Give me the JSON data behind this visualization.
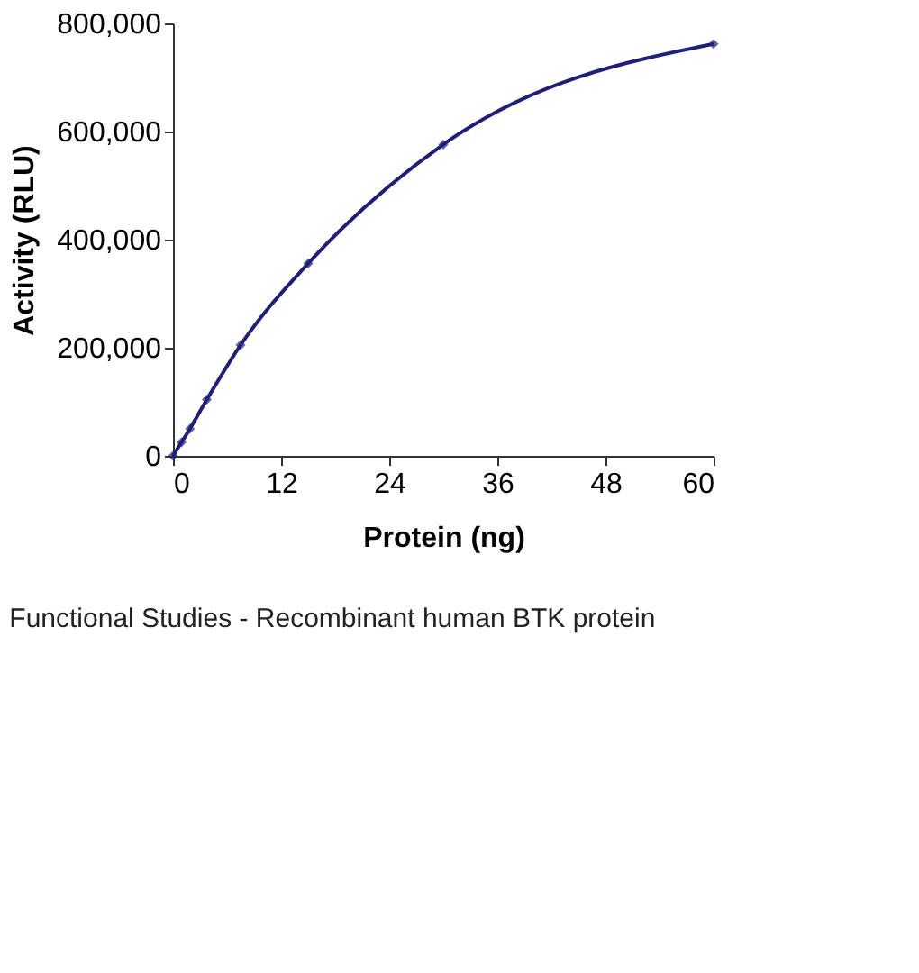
{
  "chart_data": {
    "type": "line",
    "xlabel": "Protein (ng)",
    "ylabel": "Activity (RLU)",
    "x": [
      0,
      0.94,
      1.875,
      3.75,
      7.5,
      15,
      30,
      60
    ],
    "series": [
      {
        "color": "#1f1f7a",
        "values": [
          0,
          25000,
          50000,
          104000,
          205000,
          356000,
          576000,
          762000
        ]
      }
    ],
    "xlim": [
      0,
      60
    ],
    "xticks": [
      0,
      12,
      24,
      36,
      48,
      60
    ],
    "ylim": [
      0,
      800000
    ],
    "yticks": [
      {
        "value": 0,
        "label": "0"
      },
      {
        "value": 200000,
        "label": "200,000"
      },
      {
        "value": 400000,
        "label": "400,000"
      },
      {
        "value": 600000,
        "label": "600,000"
      },
      {
        "value": 800000,
        "label": "800,000"
      }
    ],
    "marker": "diamond",
    "line_style": "solid",
    "grid": false,
    "legend": false,
    "annotations": [
      "Functional Studies - Recombinant human BTK protein"
    ]
  }
}
